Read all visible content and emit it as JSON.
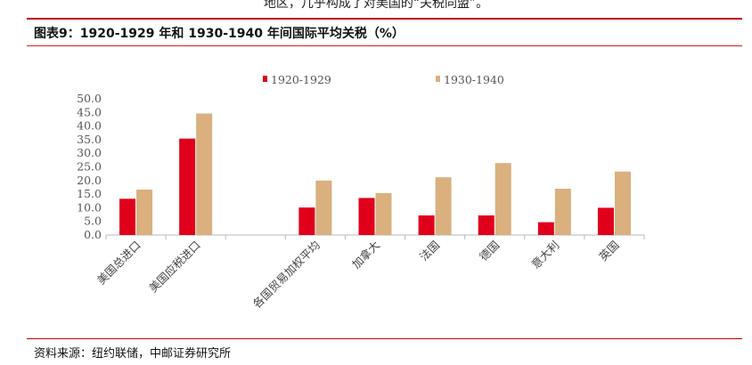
{
  "page": {
    "intro_fragment": "地区，几乎构成了对美国的“关税同盟”。",
    "figure_title": "图表9：1920-1929 年和 1930-1940 年间国际平均关税（%）",
    "source": "资料来源：纽约联储，中邮证券研究所"
  },
  "colors": {
    "accent": "#c0000a",
    "series_1": "#e0001b",
    "series_2": "#d9b07e"
  },
  "chart_data": {
    "type": "bar",
    "categories": [
      "美国总进口",
      "美国应税进口",
      "",
      "各国贸易加权平均",
      "加拿大",
      "法国",
      "德国",
      "意大利",
      "英国"
    ],
    "series": [
      {
        "name": "1920-1929",
        "values": [
          13.3,
          35.4,
          null,
          10.1,
          13.6,
          7.2,
          7.2,
          4.7,
          10.0
        ]
      },
      {
        "name": "1930-1940",
        "values": [
          16.7,
          44.6,
          null,
          20.0,
          15.4,
          21.2,
          26.4,
          17.0,
          23.3
        ]
      }
    ],
    "ylim": [
      0,
      50
    ],
    "yticks": [
      "0.0",
      "5.0",
      "10.0",
      "15.0",
      "20.0",
      "25.0",
      "30.0",
      "35.0",
      "40.0",
      "45.0",
      "50.0"
    ],
    "legend_position": "top",
    "grid": false
  }
}
